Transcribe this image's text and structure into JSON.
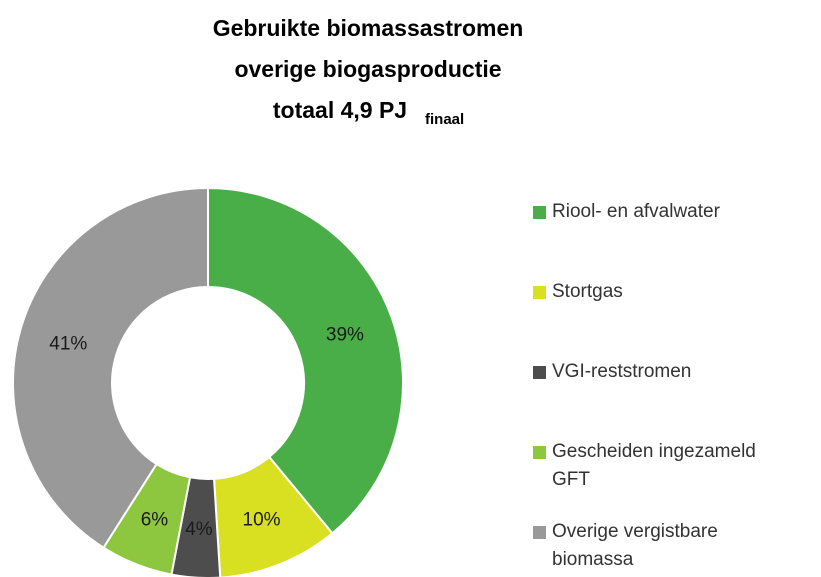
{
  "chart_data": {
    "type": "donut",
    "title": [
      "Gebruikte biomassastromen",
      "overige biogasproductie",
      "totaal 4,9 PJ"
    ],
    "title_subscript": "finaal",
    "categories": [
      "Riool- en afvalwater",
      "Stortgas",
      "VGI-reststromen",
      "Gescheiden ingezameld GFT",
      "Overige vergistbare biomassa"
    ],
    "values": [
      39,
      10,
      4,
      6,
      41
    ],
    "value_labels": [
      "39%",
      "10%",
      "4%",
      "6%",
      "41%"
    ],
    "colors": [
      "#4aae48",
      "#d9e021",
      "#4d4d4d",
      "#8dc63f",
      "#999999"
    ],
    "legend": "right"
  }
}
